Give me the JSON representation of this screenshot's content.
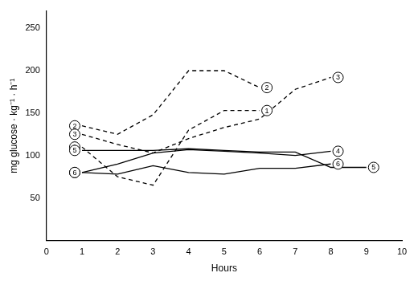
{
  "chart_data": {
    "type": "line",
    "x_label": "Hours",
    "y_label": "mg glucose · kg⁻¹ · h⁻¹",
    "x": [
      1,
      2,
      3,
      4,
      5,
      6,
      7,
      8,
      9
    ],
    "series": [
      {
        "name": "1",
        "color": "#000000",
        "line_style": "dashed",
        "marker": "none",
        "values": [
          110,
          75,
          65,
          130,
          153,
          153,
          null,
          null,
          null
        ]
      },
      {
        "name": "2",
        "color": "#000000",
        "line_style": "dashed",
        "marker": "none",
        "values": [
          135,
          125,
          148,
          200,
          200,
          180,
          null,
          null,
          null
        ]
      },
      {
        "name": "3",
        "color": "#000000",
        "line_style": "dashed",
        "marker": "none",
        "values": [
          125,
          113,
          103,
          120,
          133,
          143,
          178,
          192,
          null
        ]
      },
      {
        "name": "4",
        "color": "#000000",
        "line_style": "solid",
        "marker": "none",
        "values": [
          80,
          90,
          103,
          107,
          105,
          103,
          100,
          105,
          null
        ]
      },
      {
        "name": "5",
        "color": "#000000",
        "line_style": "solid",
        "marker": "none",
        "values": [
          106,
          106,
          106,
          108,
          106,
          104,
          104,
          86,
          86
        ]
      },
      {
        "name": "6",
        "color": "#000000",
        "line_style": "solid",
        "marker": "none",
        "values": [
          80,
          78,
          88,
          80,
          78,
          85,
          85,
          90,
          null
        ]
      }
    ],
    "xlim": [
      0,
      10
    ],
    "xticks": [
      0,
      1,
      2,
      3,
      4,
      5,
      6,
      7,
      8,
      9,
      10
    ],
    "ylim": [
      0,
      270
    ],
    "yticks": [
      50,
      100,
      150,
      200,
      250
    ],
    "grid": false
  }
}
